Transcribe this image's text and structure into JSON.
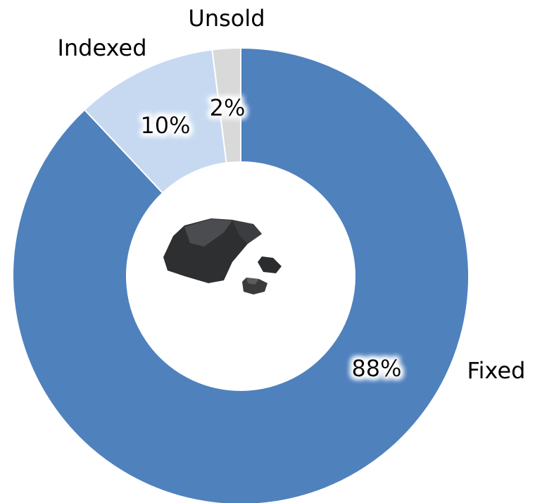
{
  "chart_data": {
    "type": "donut",
    "categories": [
      "Fixed",
      "Indexed",
      "Unsold"
    ],
    "values": [
      88,
      10,
      2
    ],
    "value_labels": [
      "88%",
      "10%",
      "2%"
    ],
    "colors": [
      "#4f81bd",
      "#c6d9f1",
      "#d9d9d9"
    ]
  }
}
